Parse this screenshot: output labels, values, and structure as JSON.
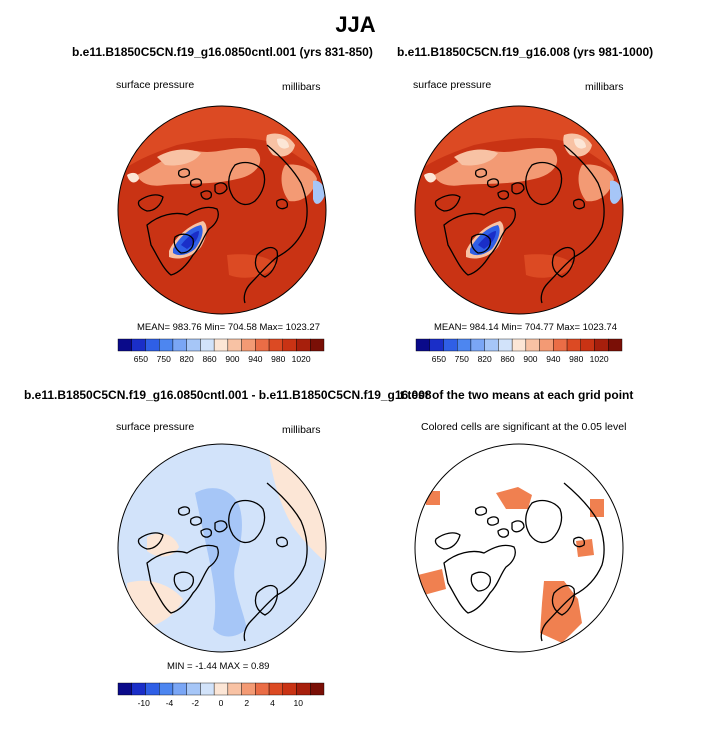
{
  "title": "JJA",
  "panels": [
    {
      "title": "b.e11.B1850C5CN.f19_g16.0850cntl.001 (yrs 831-850)",
      "left_label": "surface pressure",
      "right_label": "millibars",
      "stats": "MEAN= 983.76  Min= 704.58  Max= 1023.27",
      "colorbar": {
        "labels": [
          "650",
          "750",
          "820",
          "860",
          "900",
          "940",
          "980",
          "1020"
        ],
        "colors": [
          "#0a0a8a",
          "#1a2ec8",
          "#2f5fe6",
          "#4d86f0",
          "#7aa6f5",
          "#a6c6f7",
          "#d2e3fa",
          "#fce6d6",
          "#f8c2a4",
          "#f39a74",
          "#ea6d46",
          "#dc4a23",
          "#c93314",
          "#a71f0c",
          "#7a0f06"
        ]
      },
      "colors": {
        "base": "#c93314",
        "mid": "#dc4a23",
        "light": "#f39a74",
        "pale": "#f8c2a4",
        "white": "#fce6d6",
        "blue": "#2f5fe6",
        "deep": "#1a2ec8",
        "lightblue": "#a6c6f7"
      }
    },
    {
      "title": "b.e11.B1850C5CN.f19_g16.008 (yrs 981-1000)",
      "left_label": "surface pressure",
      "right_label": "millibars",
      "stats": "MEAN= 984.14  Min= 704.77  Max= 1023.74",
      "colorbar": {
        "labels": [
          "650",
          "750",
          "820",
          "860",
          "900",
          "940",
          "980",
          "1020"
        ],
        "colors": [
          "#0a0a8a",
          "#1a2ec8",
          "#2f5fe6",
          "#4d86f0",
          "#7aa6f5",
          "#a6c6f7",
          "#d2e3fa",
          "#fce6d6",
          "#f8c2a4",
          "#f39a74",
          "#ea6d46",
          "#dc4a23",
          "#c93314",
          "#a71f0c",
          "#7a0f06"
        ]
      }
    },
    {
      "title": "b.e11.B1850C5CN.f19_g16.0850cntl.001 - b.e11.B1850C5CN.f19_g16.008",
      "left_label": "surface pressure",
      "right_label": "millibars",
      "stats": "MIN =  -1.44 MAX =   0.89",
      "colorbar": {
        "labels": [
          "-10",
          "-4",
          "-2",
          "0",
          "2",
          "4",
          "10"
        ],
        "colors": [
          "#0a0a8a",
          "#1a2ec8",
          "#2f5fe6",
          "#4d86f0",
          "#7aa6f5",
          "#a6c6f7",
          "#d2e3fa",
          "#fce6d6",
          "#f8c2a4",
          "#f39a74",
          "#ea6d46",
          "#dc4a23",
          "#c93314",
          "#a71f0c",
          "#7a0f06"
        ]
      },
      "colors": {
        "base": "#d2e3fa",
        "neg": "#a6c6f7",
        "pos": "#fce6d6"
      }
    },
    {
      "title": "t test of the two means at each grid point",
      "subtitle": "Colored cells are significant at the 0.05 level",
      "colors": {
        "sig": "#f08050"
      }
    }
  ]
}
